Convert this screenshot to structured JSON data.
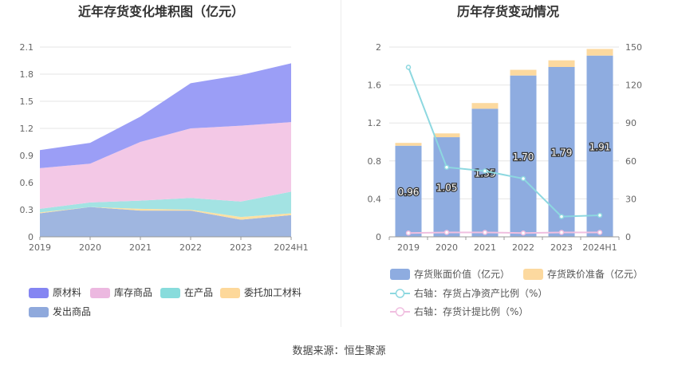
{
  "source": "数据来源：恒生聚源",
  "chart_data": [
    {
      "type": "area",
      "stacked": true,
      "title": "近年存货变化堆积图（亿元）",
      "categories": [
        "2019",
        "2020",
        "2021",
        "2022",
        "2023",
        "2024H1"
      ],
      "y_ticks": [
        "0",
        "0.3",
        "0.6",
        "0.9",
        "1.2",
        "1.5",
        "1.8",
        "2.1"
      ],
      "ylim": [
        0,
        2.1
      ],
      "grid": true,
      "legend_position": "bottom-left",
      "series": [
        {
          "name": "发出商品",
          "color": "#9fb6e0",
          "values": [
            0.26,
            0.33,
            0.29,
            0.29,
            0.19,
            0.24
          ]
        },
        {
          "name": "委托加工材料",
          "color": "#fde0a2",
          "values": [
            0.01,
            0.0,
            0.02,
            0.01,
            0.03,
            0.02
          ]
        },
        {
          "name": "在产品",
          "color": "#a3e3e3",
          "values": [
            0.04,
            0.05,
            0.09,
            0.13,
            0.17,
            0.24
          ]
        },
        {
          "name": "库存商品",
          "color": "#f3c8e6",
          "values": [
            0.45,
            0.43,
            0.65,
            0.77,
            0.84,
            0.77
          ]
        },
        {
          "name": "原材料",
          "color": "#9b9ef6",
          "values": [
            0.2,
            0.23,
            0.28,
            0.5,
            0.56,
            0.65
          ]
        }
      ],
      "legend_order": [
        "原材料",
        "库存商品",
        "在产品",
        "委托加工材料",
        "发出商品"
      ],
      "legend_colors": {
        "原材料": "#8485f2",
        "库存商品": "#ecb8e0",
        "在产品": "#88dcdc",
        "委托加工材料": "#fdd89a",
        "发出商品": "#8fa9dc"
      }
    },
    {
      "type": "bar",
      "stacked": true,
      "title": "历年存货变动情况",
      "categories": [
        "2019",
        "2020",
        "2021",
        "2022",
        "2023",
        "2024H1"
      ],
      "y_ticks": [
        "0",
        "0.4",
        "0.8",
        "1.2",
        "1.6",
        "2"
      ],
      "ylim": [
        0,
        2
      ],
      "y2_ticks": [
        "0",
        "30",
        "60",
        "90",
        "120",
        "150"
      ],
      "y2lim": [
        0,
        150
      ],
      "grid": true,
      "legend_position": "bottom",
      "series": [
        {
          "name": "存货账面价值（亿元）",
          "axis": "left",
          "color": "#8eace0",
          "values": [
            0.96,
            1.05,
            1.35,
            1.7,
            1.79,
            1.91
          ],
          "labels": [
            "0.96",
            "1.05",
            "1.35",
            "1.70",
            "1.79",
            "1.91"
          ]
        },
        {
          "name": "存货跌价准备（亿元）",
          "axis": "left",
          "color": "#fcd99f",
          "values": [
            0.03,
            0.04,
            0.06,
            0.06,
            0.07,
            0.07
          ]
        },
        {
          "name": "右轴：存货占净资产比例（%）",
          "axis": "right",
          "type": "line",
          "color": "#8dd8e0",
          "values": [
            134,
            55,
            52,
            46,
            16,
            17
          ]
        },
        {
          "name": "右轴：存货计提比例（%）",
          "axis": "right",
          "type": "line",
          "color": "#f0bfe0",
          "values": [
            3,
            3.5,
            3.5,
            3,
            3.5,
            3.5
          ]
        }
      ]
    }
  ]
}
